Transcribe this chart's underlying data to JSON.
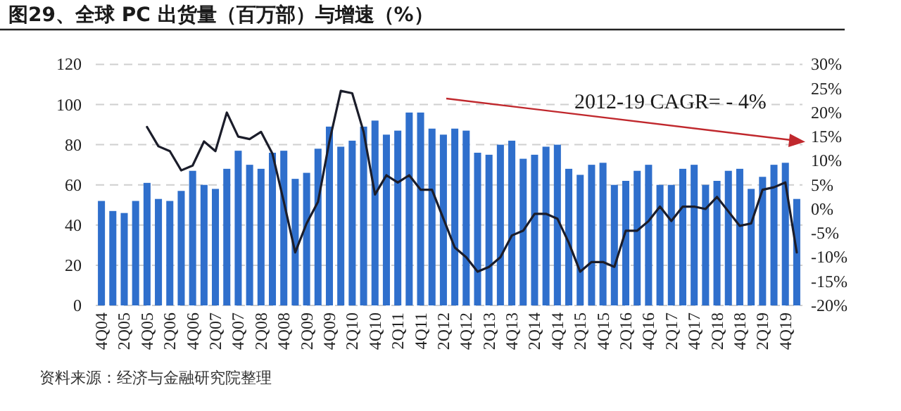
{
  "chart_data": {
    "type": "bar",
    "title": "图29、全球 PC 出货量（百万部）与增速（%）",
    "annotations": [
      "2012-19 CAGR= - 4%",
      "资料来源：经济与金融研究院整理"
    ],
    "categories": [
      "4Q04",
      null,
      "2Q05",
      null,
      "4Q05",
      null,
      "2Q06",
      null,
      "4Q06",
      null,
      "2Q07",
      null,
      "4Q07",
      null,
      "2Q08",
      null,
      "4Q08",
      null,
      "2Q09",
      null,
      "4Q09",
      null,
      "2Q10",
      null,
      "4Q10",
      null,
      "2Q11",
      null,
      "4Q11",
      null,
      "2Q12",
      null,
      "4Q12",
      null,
      "2Q13",
      null,
      "4Q13",
      null,
      "2Q14",
      null,
      "4Q14",
      null,
      "2Q15",
      null,
      "4Q15",
      null,
      "2Q16",
      null,
      "4Q16",
      null,
      "2Q17",
      null,
      "4Q17",
      null,
      "2Q18",
      null,
      "4Q18",
      null,
      "2Q19",
      null,
      "4Q19",
      null
    ],
    "series": [
      {
        "color": "#2f6fcc",
        "values": [
          52,
          47,
          46,
          52,
          61,
          53,
          52,
          57,
          67,
          60,
          58,
          68,
          77,
          70,
          68,
          76,
          77,
          63,
          66,
          78,
          89,
          79,
          82,
          89,
          92,
          85,
          87,
          96,
          96,
          88,
          85,
          88,
          87,
          76,
          75,
          80,
          82,
          73,
          75,
          79,
          80,
          68,
          65,
          70,
          71,
          60,
          62,
          67,
          70,
          60,
          60,
          68,
          70,
          60,
          62,
          67,
          68,
          58,
          64,
          70,
          71,
          53
        ]
      },
      {
        "type": "line",
        "axis": "y2",
        "color": "#1b1d2a",
        "values": [
          null,
          null,
          null,
          null,
          17,
          13,
          12,
          8,
          9,
          14,
          12,
          20,
          15,
          14.5,
          16,
          11.5,
          1.5,
          -9,
          -3,
          1.5,
          14,
          24.5,
          24,
          16,
          3,
          7,
          5.5,
          7,
          4,
          4,
          -2,
          -8,
          -10,
          -13,
          -12,
          -10,
          -5.5,
          -4.5,
          -1,
          -1,
          -2,
          -7,
          -13,
          -11,
          -11,
          -12,
          -4.5,
          -4.5,
          -2.5,
          0.5,
          -2.5,
          0.5,
          0.5,
          0,
          2.5,
          -0.5,
          -3.5,
          -3,
          4,
          4.5,
          5.5,
          -9
        ]
      }
    ],
    "ylim": [
      0,
      120
    ],
    "yticks": [
      0,
      20,
      40,
      60,
      80,
      100,
      120
    ],
    "y2lim": [
      -20,
      30
    ],
    "y2ticks": [
      {
        "value": -20,
        "label": "-20%"
      },
      {
        "value": -15,
        "label": "-15%"
      },
      {
        "value": -10,
        "label": "-10%"
      },
      {
        "value": -5,
        "label": "-5%"
      },
      {
        "value": 0,
        "label": "0%"
      },
      {
        "value": 5,
        "label": "5%"
      },
      {
        "value": 10,
        "label": "10%"
      },
      {
        "value": 15,
        "label": "15%"
      },
      {
        "value": 20,
        "label": "20%"
      },
      {
        "value": 25,
        "label": "25%"
      },
      {
        "value": 30,
        "label": "30%"
      }
    ],
    "grid": "y"
  }
}
